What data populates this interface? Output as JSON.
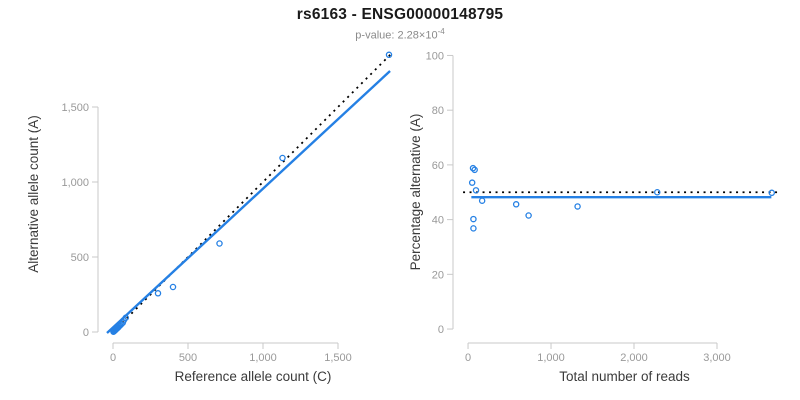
{
  "header": {
    "title": "rs6163 - ENSG00000148795",
    "subtitle_prefix": "p-value: 2.28×10",
    "subtitle_exponent": "-4"
  },
  "colors": {
    "accent_blue": "#2580e4",
    "expected_line": "#000000",
    "axis_line": "#c9c9c9",
    "tick_label": "#999999",
    "axis_title": "#3b3b3b"
  },
  "chart_data": [
    {
      "id": "allele-count-scatter",
      "type": "scatter",
      "xlabel": "Reference allele count (C)",
      "ylabel": "Alternative allele count (A)",
      "xlim": [
        -100,
        1860
      ],
      "ylim": [
        -100,
        1860
      ],
      "grid": false,
      "legend": "none",
      "xticks": [
        0,
        500,
        1000,
        1500
      ],
      "xtick_labels": [
        "0",
        "500",
        "1,000",
        "1,500"
      ],
      "yticks": [
        0,
        500,
        1000,
        1500
      ],
      "ytick_labels": [
        "0",
        "500",
        "1,000",
        "1,500"
      ],
      "points": [
        [
          3,
          2
        ],
        [
          6,
          5
        ],
        [
          10,
          8
        ],
        [
          14,
          12
        ],
        [
          18,
          15
        ],
        [
          22,
          20
        ],
        [
          26,
          24
        ],
        [
          30,
          27
        ],
        [
          35,
          31
        ],
        [
          40,
          38
        ],
        [
          47,
          44
        ],
        [
          55,
          52
        ],
        [
          65,
          62
        ],
        [
          72,
          78
        ],
        [
          85,
          95
        ],
        [
          300,
          258
        ],
        [
          400,
          300
        ],
        [
          710,
          590
        ],
        [
          1130,
          1160
        ],
        [
          1840,
          1848
        ]
      ],
      "lines": [
        {
          "name": "expected-line",
          "style": "dotted",
          "color": "#000000",
          "x1": 0,
          "y1": 0,
          "x2": 1853,
          "y2": 1853
        },
        {
          "name": "fit-line",
          "style": "solid",
          "color": "#2580e4",
          "x1": -40,
          "y1": -7,
          "x2": 1847,
          "y2": 1740
        }
      ]
    },
    {
      "id": "percentage-reads-scatter",
      "type": "scatter",
      "xlabel": "Total number of reads",
      "ylabel": "Percentage alternative (A)",
      "xlim": [
        -157,
        3735
      ],
      "ylim": [
        -5.1,
        100.9
      ],
      "grid": false,
      "legend": "none",
      "xticks": [
        0,
        1000,
        2000,
        3000
      ],
      "xtick_labels": [
        "0",
        "1,000",
        "2,000",
        "3,000"
      ],
      "yticks": [
        0,
        20,
        40,
        60,
        80,
        100
      ],
      "ytick_labels": [
        "0",
        "20",
        "40",
        "60",
        "80",
        "100"
      ],
      "points": [
        [
          60,
          58.8
        ],
        [
          80,
          58.2
        ],
        [
          50,
          53.5
        ],
        [
          96,
          50.7
        ],
        [
          170,
          46.9
        ],
        [
          580,
          45.6
        ],
        [
          730,
          41.5
        ],
        [
          65,
          40.2
        ],
        [
          65,
          36.8
        ],
        [
          1320,
          44.8
        ],
        [
          2280,
          50.0
        ],
        [
          3660,
          49.8
        ]
      ],
      "lines": [
        {
          "name": "expected-line",
          "style": "dotted",
          "color": "#000000",
          "x1": -60,
          "y1": 50,
          "x2": 3735,
          "y2": 50
        },
        {
          "name": "fit-line",
          "style": "solid",
          "color": "#2580e4",
          "x1": 40,
          "y1": 48.2,
          "x2": 3655,
          "y2": 48.2
        }
      ]
    }
  ]
}
